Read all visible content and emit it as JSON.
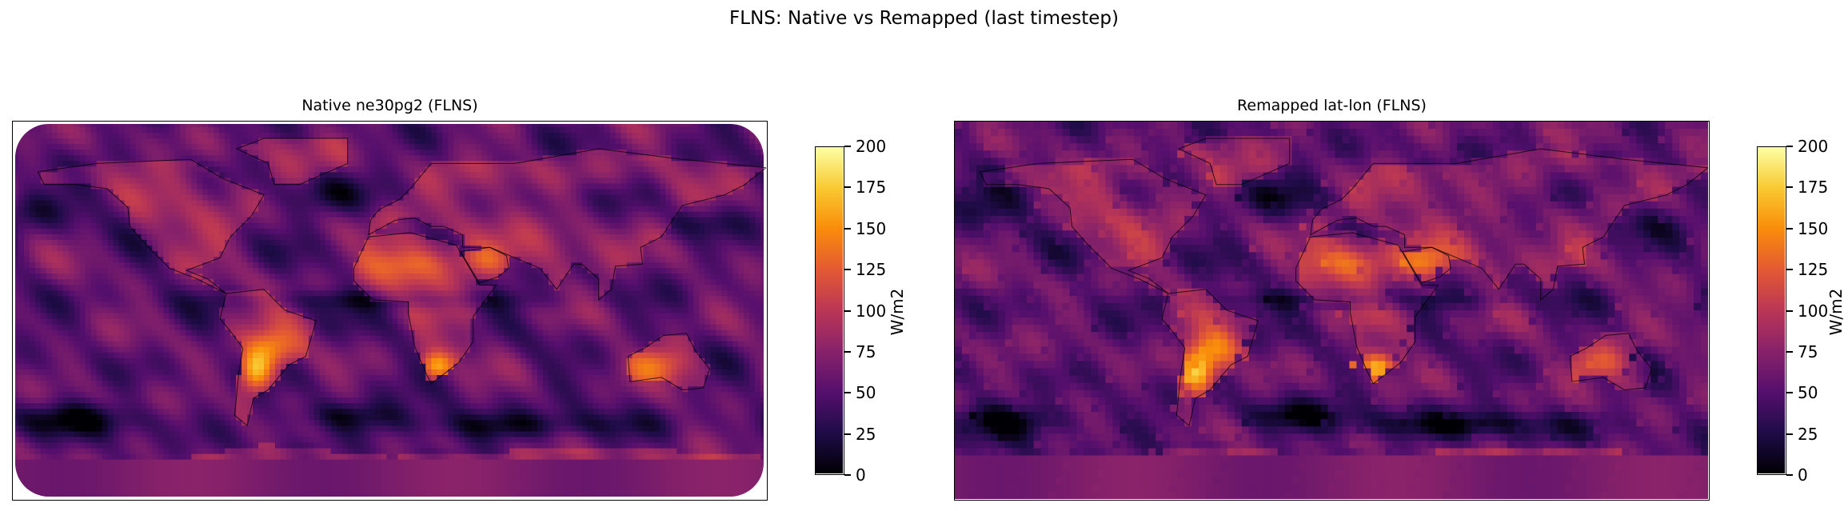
{
  "figure": {
    "title": "FLNS: Native vs Remapped (last timestep)"
  },
  "chart_data": [
    {
      "type": "heatmap",
      "title": "Native ne30pg2 (FLNS)",
      "projection": "PlateCarree",
      "grid": "ne30pg2 cubed-sphere",
      "colormap": "inferno",
      "clim": [
        0,
        200
      ],
      "colorbar": {
        "label": "W/m2",
        "ticks": [
          0,
          25,
          50,
          75,
          100,
          125,
          150,
          175,
          200
        ]
      },
      "regions_highlighted": [
        {
          "region": "South America (Argentina)",
          "approx_value": 170
        },
        {
          "region": "Southern Africa",
          "approx_value": 160
        },
        {
          "region": "Sahara / North Africa",
          "approx_value": 130
        },
        {
          "region": "Southern Ocean storm track",
          "approx_value": 10
        },
        {
          "region": "Antarctica",
          "approx_value": 70
        }
      ]
    },
    {
      "type": "heatmap",
      "title": "Remapped lat-lon (FLNS)",
      "projection": "PlateCarree",
      "grid": "regular lat-lon",
      "colormap": "inferno",
      "clim": [
        0,
        200
      ],
      "colorbar": {
        "label": "W/m2",
        "ticks": [
          0,
          25,
          50,
          75,
          100,
          125,
          150,
          175,
          200
        ]
      },
      "regions_highlighted": [
        {
          "region": "South America (Argentina)",
          "approx_value": 170
        },
        {
          "region": "Southern Africa",
          "approx_value": 160
        },
        {
          "region": "Sahara / North Africa",
          "approx_value": 130
        },
        {
          "region": "Southern Ocean storm track",
          "approx_value": 10
        },
        {
          "region": "Antarctica",
          "approx_value": 70
        }
      ]
    }
  ]
}
